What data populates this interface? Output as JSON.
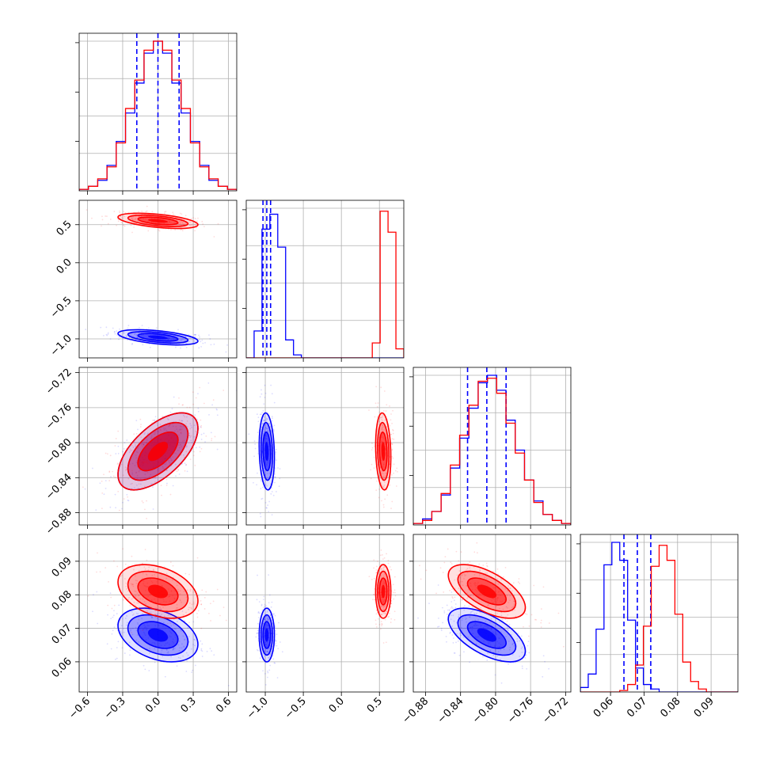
{
  "colors": {
    "series_a": "#0000ff",
    "series_b": "#ff0000",
    "grid": "#b0b0b0"
  },
  "chart_data": {
    "type": "scatter",
    "subtype": "corner-plot",
    "grid": true,
    "parameters": [
      {
        "ticks": [
          -0.6,
          -0.3,
          0.0,
          0.3,
          0.6
        ],
        "tick_labels": [
          "−0.6",
          "−0.3",
          "0.0",
          "0.3",
          "0.6"
        ],
        "range": [
          -0.67,
          0.67
        ]
      },
      {
        "ticks": [
          -1.0,
          -0.5,
          0.0,
          0.5
        ],
        "tick_labels": [
          "−1.0",
          "−0.5",
          "0.0",
          "0.5"
        ],
        "range": [
          -1.25,
          0.82
        ]
      },
      {
        "ticks": [
          -0.88,
          -0.84,
          -0.8,
          -0.76,
          -0.72
        ],
        "tick_labels": [
          "−0.88",
          "−0.84",
          "−0.80",
          "−0.76",
          "−0.72"
        ],
        "range": [
          -0.894,
          -0.714
        ]
      },
      {
        "ticks": [
          0.06,
          0.07,
          0.08,
          0.09
        ],
        "tick_labels": [
          "0.06",
          "0.07",
          "0.08",
          "0.09"
        ],
        "range": [
          0.051,
          0.098
        ]
      }
    ],
    "series": [
      {
        "color": "#0000ff",
        "means": [
          0.0,
          -0.98,
          -0.81,
          0.068
        ],
        "stds": [
          0.17,
          0.05,
          0.022,
          0.004
        ],
        "correlations": {
          "0-1": -0.5,
          "0-2": 0.6,
          "0-3": -0.35,
          "1-2": -0.15,
          "1-3": 0.0,
          "2-3": -0.6
        },
        "quantile_lines": [
          [
            -0.18,
            0.0,
            0.18
          ],
          [
            -1.03,
            -0.98,
            -0.93
          ],
          [
            -0.832,
            -0.81,
            -0.788
          ],
          [
            0.064,
            0.068,
            0.072
          ]
        ],
        "histograms": [
          [
            0.01,
            0.03,
            0.07,
            0.17,
            0.33,
            0.52,
            0.72,
            0.92,
            1.0,
            0.92,
            0.72,
            0.52,
            0.33,
            0.17,
            0.07,
            0.03,
            0.01
          ],
          [
            0.0,
            0.18,
            0.86,
            0.96,
            0.74,
            0.12,
            0.02,
            0.0,
            0.0,
            0.0,
            0.0,
            0.0,
            0.0,
            0.0,
            0.0,
            0.0,
            0.0,
            0.0,
            0.0,
            0.0
          ],
          [
            0.01,
            0.04,
            0.09,
            0.2,
            0.38,
            0.58,
            0.78,
            0.95,
            1.0,
            0.9,
            0.7,
            0.5,
            0.3,
            0.16,
            0.07,
            0.03,
            0.01
          ],
          [
            0.03,
            0.12,
            0.42,
            0.85,
            1.0,
            0.88,
            0.48,
            0.16,
            0.05,
            0.02,
            0.0,
            0.0,
            0.0,
            0.0,
            0.0,
            0.0,
            0.0,
            0.0,
            0.0,
            0.0
          ]
        ]
      },
      {
        "color": "#ff0000",
        "means": [
          0.0,
          0.55,
          -0.81,
          0.081
        ],
        "stds": [
          0.17,
          0.05,
          0.022,
          0.004
        ],
        "correlations": {
          "0-1": -0.5,
          "0-2": 0.6,
          "0-3": -0.35,
          "1-2": -0.15,
          "1-3": 0.0,
          "2-3": -0.6
        },
        "histograms": [
          [
            0.01,
            0.03,
            0.08,
            0.16,
            0.32,
            0.55,
            0.74,
            0.94,
            1.0,
            0.94,
            0.74,
            0.55,
            0.32,
            0.16,
            0.08,
            0.03,
            0.01
          ],
          [
            0.0,
            0.0,
            0.0,
            0.0,
            0.0,
            0.0,
            0.0,
            0.0,
            0.0,
            0.0,
            0.0,
            0.0,
            0.0,
            0.0,
            0.0,
            0.0,
            0.1,
            0.98,
            0.84,
            0.06
          ],
          [
            0.01,
            0.03,
            0.09,
            0.21,
            0.4,
            0.6,
            0.8,
            0.96,
            0.98,
            0.88,
            0.68,
            0.48,
            0.3,
            0.15,
            0.07,
            0.03,
            0.01
          ],
          [
            0.0,
            0.0,
            0.0,
            0.0,
            0.0,
            0.01,
            0.05,
            0.18,
            0.44,
            0.84,
            0.98,
            0.88,
            0.52,
            0.2,
            0.07,
            0.02,
            0.0,
            0.0,
            0.0,
            0.0
          ]
        ]
      }
    ]
  }
}
